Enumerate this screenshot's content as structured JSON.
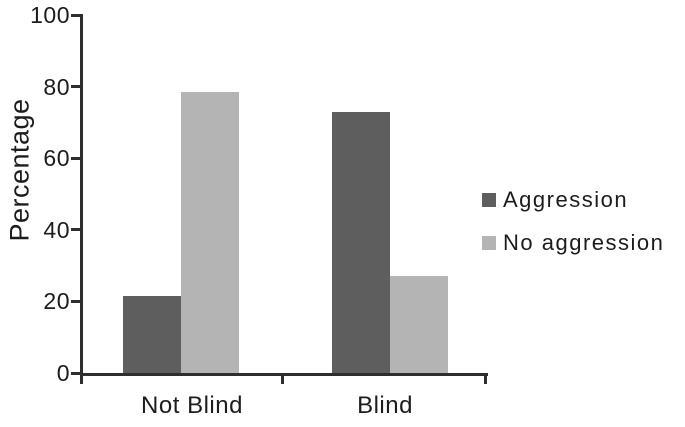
{
  "figure": {
    "background": "#ffffff",
    "axis_color": "#2e2e2e",
    "text_color": "#1c1c1c"
  },
  "chart_data": {
    "type": "bar",
    "title": "",
    "categories": [
      "Not Blind",
      "Blind"
    ],
    "series": [
      {
        "name": "Aggression",
        "values": [
          21.4,
          72.9
        ],
        "color": "#5e5e5e"
      },
      {
        "name": "No aggression",
        "values": [
          78.6,
          27.1
        ],
        "color": "#b4b4b4"
      }
    ],
    "xlabel": "",
    "ylabel": "Percentage",
    "ylim": [
      0,
      100
    ],
    "yticks": [
      0,
      20,
      40,
      60,
      80,
      100
    ],
    "grid": false,
    "legend_position": "right"
  }
}
